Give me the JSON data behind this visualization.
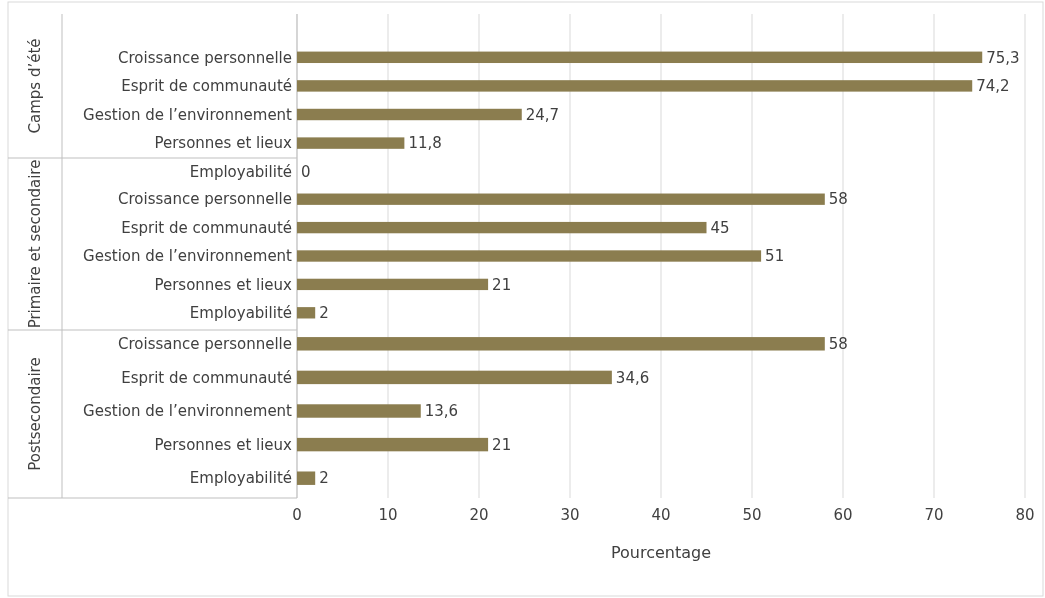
{
  "chart_data": [
    {
      "type": "bar",
      "orientation": "horizontal",
      "title": "Camps d’été",
      "categories": [
        "Croissance personnelle",
        "Esprit de communauté",
        "Gestion de l’environnement",
        "Personnes et lieux",
        "Employabilité"
      ],
      "values": [
        75.3,
        74.2,
        24.7,
        11.8,
        0
      ],
      "value_labels": [
        "75,3",
        "74,2",
        "24,7",
        "11,8",
        "0"
      ],
      "color": "#8b7d4f",
      "xlim": [
        0,
        80
      ],
      "xticks": [
        0,
        10,
        20,
        30,
        40,
        50,
        60,
        70,
        80
      ],
      "grid": "x",
      "tick_labels": "y"
    },
    {
      "type": "bar",
      "orientation": "horizontal",
      "title": "Primaire et secondaire",
      "categories": [
        "Croissance personnelle",
        "Esprit de communauté",
        "Gestion de l’environnement",
        "Personnes et lieux",
        "Employabilité"
      ],
      "values": [
        58,
        45,
        51,
        21,
        2
      ],
      "value_labels": [
        "58",
        "45",
        "51",
        "21",
        "2"
      ],
      "color": "#8b7d4f",
      "xlim": [
        0,
        80
      ],
      "xticks": [
        0,
        10,
        20,
        30,
        40,
        50,
        60,
        70,
        80
      ],
      "grid": "x",
      "tick_labels": "y"
    },
    {
      "type": "bar",
      "orientation": "horizontal",
      "title": "Postsecondaire",
      "categories": [
        "Croissance personnelle",
        "Esprit de communauté",
        "Gestion de l’environnement",
        "Personnes et lieux",
        "Employabilité"
      ],
      "values": [
        58,
        34.6,
        13.6,
        21,
        2
      ],
      "value_labels": [
        "58",
        "34,6",
        "13,6",
        "21",
        "2"
      ],
      "color": "#8b7d4f",
      "xlim": [
        0,
        80
      ],
      "xticks": [
        0,
        10,
        20,
        30,
        40,
        50,
        60,
        70,
        80
      ],
      "grid": "x",
      "xlabel": "Pourcentage"
    }
  ]
}
